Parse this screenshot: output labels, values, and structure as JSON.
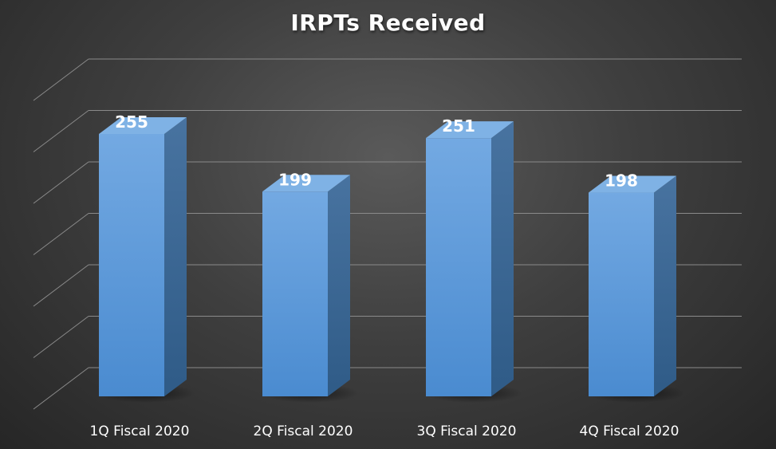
{
  "chart_data": {
    "type": "bar",
    "style": "3d-column",
    "title": "IRPTs Received",
    "categories": [
      "1Q Fiscal 2020",
      "2Q Fiscal 2020",
      "3Q Fiscal 2020",
      "4Q Fiscal 2020"
    ],
    "values": [
      255,
      199,
      251,
      198
    ],
    "ylim": [
      0,
      300
    ],
    "grid": true,
    "data_labels": true,
    "legend": "none",
    "colors": {
      "bar_front": "#5b9bd5",
      "bar_side": "#3e6d9c",
      "bar_top": "#7fb2e5",
      "gridline": "#8a8a8a",
      "text": "#ffffff"
    }
  }
}
